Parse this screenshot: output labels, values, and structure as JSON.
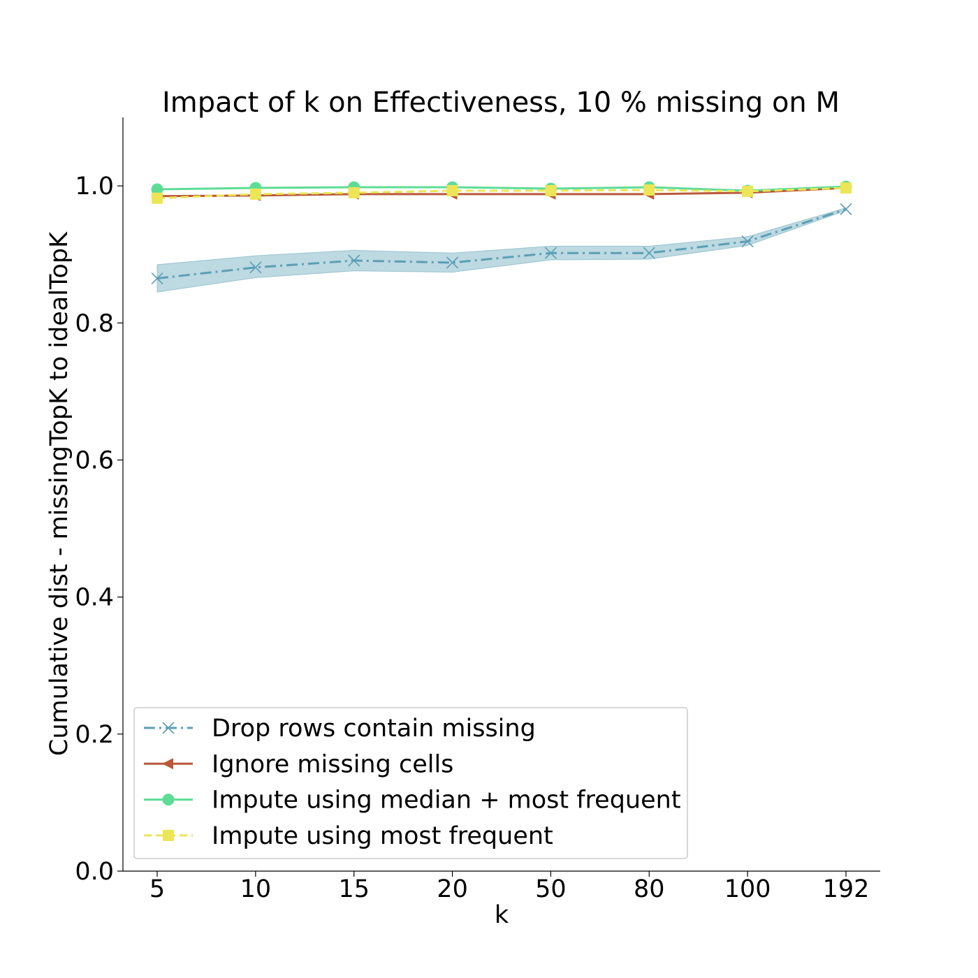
{
  "chart_data": {
    "type": "line",
    "title": "Impact of k on Effectiveness, 10 % missing on M",
    "xlabel": "k",
    "ylabel": "Cumulative dist - missingTopK to idealTopK",
    "categories": [
      "5",
      "10",
      "15",
      "20",
      "50",
      "80",
      "100",
      "192"
    ],
    "ylim": [
      0.0,
      1.1
    ],
    "yticks": [
      "0.0",
      "0.2",
      "0.4",
      "0.6",
      "0.8",
      "1.0"
    ],
    "grid": false,
    "legend_position": "lower-left",
    "series": [
      {
        "name": "Drop rows contain missing",
        "values": [
          0.865,
          0.881,
          0.891,
          0.888,
          0.902,
          0.902,
          0.919,
          0.966
        ],
        "band_low": [
          0.845,
          0.866,
          0.876,
          0.874,
          0.892,
          0.893,
          0.913,
          0.964
        ],
        "band_high": [
          0.885,
          0.898,
          0.906,
          0.902,
          0.912,
          0.912,
          0.926,
          0.968
        ],
        "color": "#5b9fb5",
        "linestyle": "dashdot",
        "marker": "x"
      },
      {
        "name": "Ignore missing cells",
        "values": [
          0.985,
          0.986,
          0.988,
          0.988,
          0.988,
          0.988,
          0.99,
          0.997
        ],
        "color": "#b9583a",
        "linestyle": "solid",
        "marker": "triangle-left"
      },
      {
        "name": "Impute using median + most frequent",
        "values": [
          0.995,
          0.997,
          0.998,
          0.998,
          0.996,
          0.998,
          0.993,
          0.999
        ],
        "color": "#5ddc96",
        "linestyle": "solid",
        "marker": "circle"
      },
      {
        "name": "Impute using most frequent",
        "values": [
          0.982,
          0.988,
          0.99,
          0.993,
          0.993,
          0.994,
          0.992,
          0.997
        ],
        "color": "#ece556",
        "linestyle": "dashed",
        "marker": "square"
      }
    ]
  }
}
